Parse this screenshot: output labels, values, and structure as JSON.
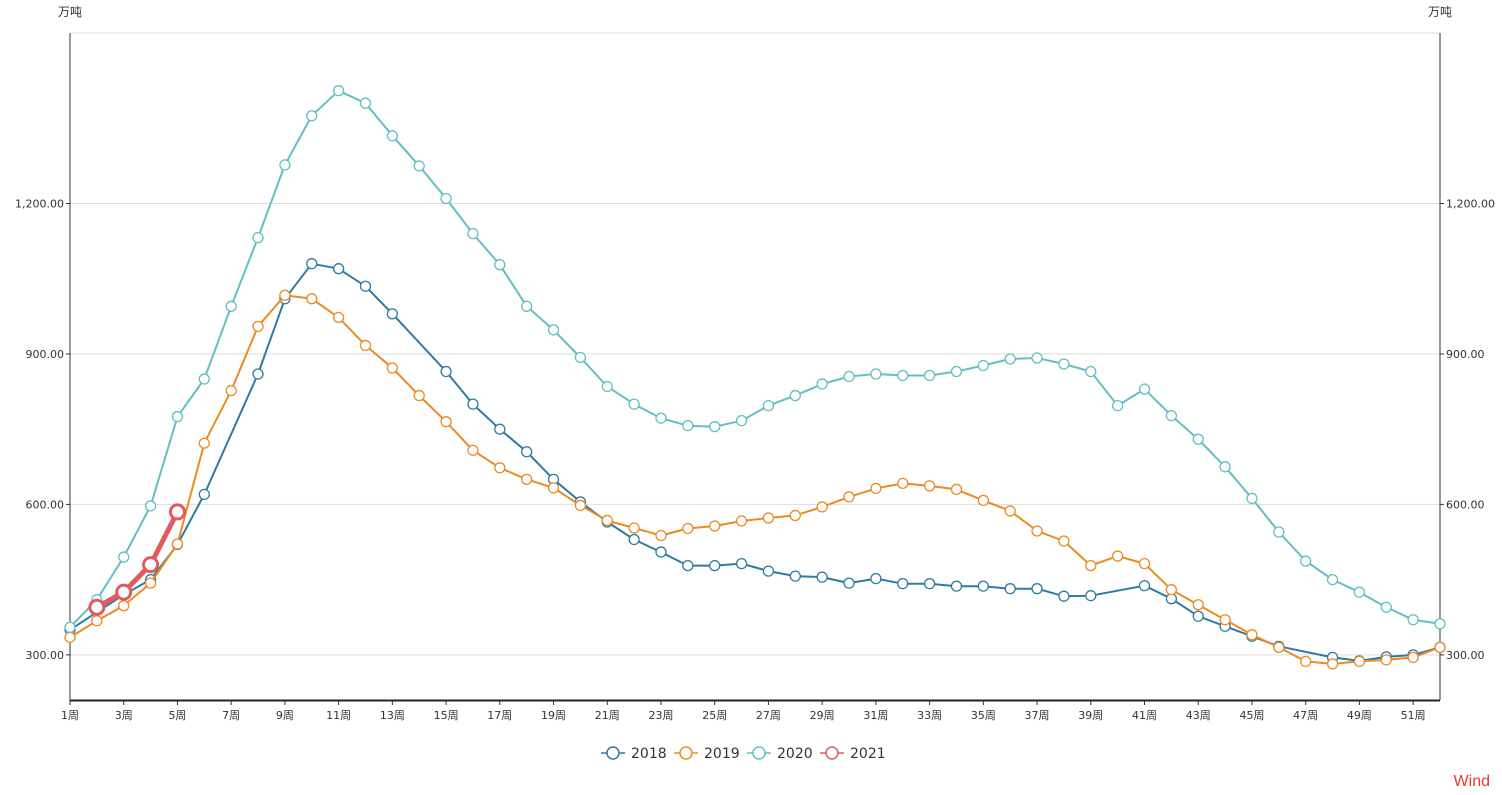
{
  "chart_data": {
    "type": "line",
    "y_unit_left": "万吨",
    "y_unit_right": "万吨",
    "ylim": [
      210,
      1540
    ],
    "y_ticks": [
      300,
      600,
      900,
      1200
    ],
    "y_tick_labels": [
      "300.00",
      "600.00",
      "900.00",
      "1,200.00"
    ],
    "x": [
      1,
      2,
      3,
      4,
      5,
      6,
      7,
      8,
      9,
      10,
      11,
      12,
      13,
      14,
      15,
      16,
      17,
      18,
      19,
      20,
      21,
      22,
      23,
      24,
      25,
      26,
      27,
      28,
      29,
      30,
      31,
      32,
      33,
      34,
      35,
      36,
      37,
      38,
      39,
      40,
      41,
      42,
      43,
      44,
      45,
      46,
      47,
      48,
      49,
      50,
      51,
      52
    ],
    "x_tick_labels": [
      "1周",
      "3周",
      "5周",
      "7周",
      "9周",
      "11周",
      "13周",
      "15周",
      "17周",
      "19周",
      "21周",
      "23周",
      "25周",
      "27周",
      "29周",
      "31周",
      "33周",
      "35周",
      "37周",
      "39周",
      "41周",
      "43周",
      "45周",
      "47周",
      "49周",
      "51周"
    ],
    "x_tick_weeks": [
      1,
      3,
      5,
      7,
      9,
      11,
      13,
      15,
      17,
      19,
      21,
      23,
      25,
      27,
      29,
      31,
      33,
      35,
      37,
      39,
      41,
      43,
      45,
      47,
      49,
      51
    ],
    "series": [
      {
        "name": "2018",
        "color": "#2e7ba2",
        "width": 2,
        "radius": 5,
        "points": [
          [
            1,
            350
          ],
          [
            3,
            420
          ],
          [
            4,
            450
          ],
          [
            5,
            520
          ],
          [
            6,
            620
          ],
          [
            8,
            860
          ],
          [
            9,
            1010
          ],
          [
            10,
            1080
          ],
          [
            11,
            1070
          ],
          [
            12,
            1035
          ],
          [
            13,
            980
          ],
          [
            15,
            865
          ],
          [
            16,
            800
          ],
          [
            17,
            750
          ],
          [
            18,
            705
          ],
          [
            19,
            650
          ],
          [
            20,
            605
          ],
          [
            21,
            565
          ],
          [
            22,
            530
          ],
          [
            23,
            505
          ],
          [
            24,
            478
          ],
          [
            25,
            478
          ],
          [
            26,
            482
          ],
          [
            27,
            467
          ],
          [
            28,
            457
          ],
          [
            29,
            455
          ],
          [
            30,
            443
          ],
          [
            31,
            452
          ],
          [
            32,
            442
          ],
          [
            33,
            442
          ],
          [
            34,
            437
          ],
          [
            35,
            437
          ],
          [
            36,
            432
          ],
          [
            37,
            432
          ],
          [
            38,
            417
          ],
          [
            39,
            418
          ],
          [
            41,
            438
          ],
          [
            42,
            412
          ],
          [
            43,
            377
          ],
          [
            44,
            357
          ],
          [
            45,
            337
          ],
          [
            46,
            317
          ],
          [
            48,
            295
          ],
          [
            49,
            288
          ],
          [
            50,
            296
          ],
          [
            51,
            300
          ],
          [
            52,
            315
          ]
        ]
      },
      {
        "name": "2019",
        "color": "#ed8a23",
        "width": 2,
        "radius": 5,
        "points": [
          [
            1,
            335
          ],
          [
            2,
            368
          ],
          [
            3,
            398
          ],
          [
            4,
            443
          ],
          [
            5,
            521
          ],
          [
            6,
            722
          ],
          [
            7,
            827
          ],
          [
            8,
            955
          ],
          [
            9,
            1017
          ],
          [
            10,
            1010
          ],
          [
            11,
            973
          ],
          [
            12,
            917
          ],
          [
            13,
            872
          ],
          [
            14,
            817
          ],
          [
            15,
            765
          ],
          [
            16,
            708
          ],
          [
            17,
            673
          ],
          [
            18,
            650
          ],
          [
            19,
            633
          ],
          [
            20,
            598
          ],
          [
            21,
            568
          ],
          [
            22,
            553
          ],
          [
            23,
            538
          ],
          [
            24,
            552
          ],
          [
            25,
            557
          ],
          [
            26,
            567
          ],
          [
            27,
            573
          ],
          [
            28,
            578
          ],
          [
            29,
            595
          ],
          [
            30,
            615
          ],
          [
            31,
            632
          ],
          [
            32,
            642
          ],
          [
            33,
            637
          ],
          [
            34,
            630
          ],
          [
            35,
            608
          ],
          [
            36,
            587
          ],
          [
            37,
            547
          ],
          [
            38,
            527
          ],
          [
            39,
            478
          ],
          [
            40,
            497
          ],
          [
            41,
            482
          ],
          [
            42,
            430
          ],
          [
            43,
            400
          ],
          [
            44,
            370
          ],
          [
            45,
            340
          ],
          [
            46,
            315
          ],
          [
            47,
            287
          ],
          [
            48,
            282
          ],
          [
            49,
            287
          ],
          [
            50,
            290
          ],
          [
            51,
            295
          ],
          [
            52,
            315
          ]
        ]
      },
      {
        "name": "2020",
        "color": "#62bfc5",
        "width": 2,
        "radius": 5,
        "points": [
          [
            1,
            355
          ],
          [
            2,
            410
          ],
          [
            3,
            495
          ],
          [
            4,
            597
          ],
          [
            5,
            775
          ],
          [
            6,
            850
          ],
          [
            7,
            995
          ],
          [
            8,
            1132
          ],
          [
            9,
            1277
          ],
          [
            10,
            1375
          ],
          [
            11,
            1425
          ],
          [
            12,
            1400
          ],
          [
            13,
            1335
          ],
          [
            14,
            1275
          ],
          [
            15,
            1210
          ],
          [
            16,
            1140
          ],
          [
            17,
            1078
          ],
          [
            18,
            995
          ],
          [
            19,
            948
          ],
          [
            20,
            893
          ],
          [
            21,
            835
          ],
          [
            22,
            800
          ],
          [
            23,
            772
          ],
          [
            24,
            757
          ],
          [
            25,
            755
          ],
          [
            26,
            767
          ],
          [
            27,
            797
          ],
          [
            28,
            817
          ],
          [
            29,
            840
          ],
          [
            30,
            855
          ],
          [
            31,
            860
          ],
          [
            32,
            857
          ],
          [
            33,
            857
          ],
          [
            34,
            865
          ],
          [
            35,
            877
          ],
          [
            36,
            890
          ],
          [
            37,
            892
          ],
          [
            38,
            880
          ],
          [
            39,
            865
          ],
          [
            40,
            797
          ],
          [
            41,
            830
          ],
          [
            42,
            777
          ],
          [
            43,
            730
          ],
          [
            44,
            675
          ],
          [
            45,
            612
          ],
          [
            46,
            545
          ],
          [
            47,
            487
          ],
          [
            48,
            450
          ],
          [
            49,
            425
          ],
          [
            50,
            395
          ],
          [
            51,
            370
          ],
          [
            52,
            362
          ]
        ]
      },
      {
        "name": "2021",
        "color": "#e05a5e",
        "width": 5,
        "radius": 7,
        "points": [
          [
            2,
            395
          ],
          [
            3,
            425
          ],
          [
            4,
            480
          ],
          [
            5,
            585
          ]
        ]
      }
    ]
  },
  "legend": [
    "2018",
    "2019",
    "2020",
    "2021"
  ],
  "watermark": {
    "text": "Wind",
    "color": "#e03a2f"
  }
}
